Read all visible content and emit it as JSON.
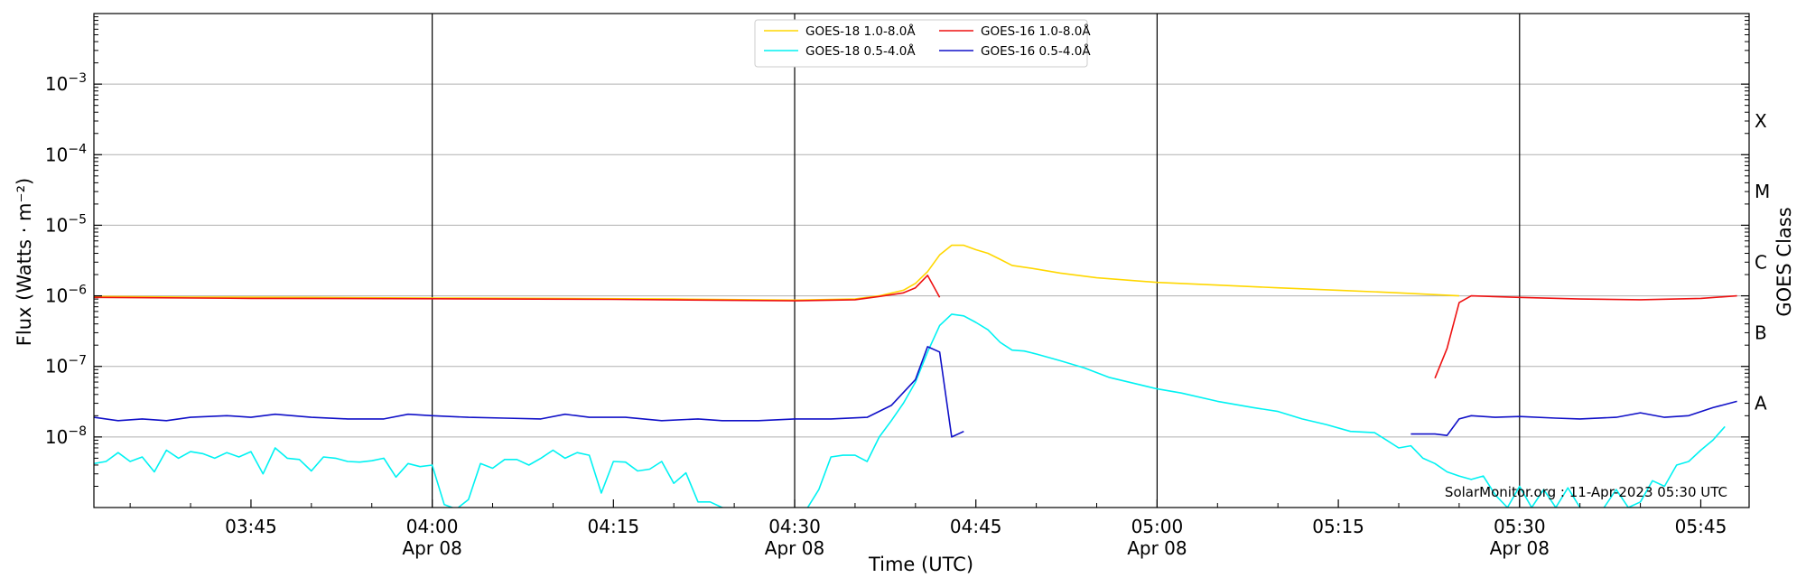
{
  "chart_data": {
    "type": "line",
    "title": "",
    "xlabel": "Time (UTC)",
    "ylabel": "Flux (Watts · m⁻²)",
    "y2label": "GOES Class",
    "yscale": "log",
    "xlim": [
      "03:32",
      "05:49"
    ],
    "ylim": [
      1e-09,
      0.01
    ],
    "grid": "horizontal",
    "legend_position": "top-center",
    "credit": "SolarMonitor.org : 11-Apr-2023 05:30 UTC",
    "x_ticks": [
      {
        "time": "03:45",
        "label": "03:45",
        "date": ""
      },
      {
        "time": "04:00",
        "label": "04:00",
        "date": "Apr 08"
      },
      {
        "time": "04:15",
        "label": "04:15",
        "date": ""
      },
      {
        "time": "04:30",
        "label": "04:30",
        "date": "Apr 08"
      },
      {
        "time": "04:45",
        "label": "04:45",
        "date": ""
      },
      {
        "time": "05:00",
        "label": "05:00",
        "date": "Apr 08"
      },
      {
        "time": "05:15",
        "label": "05:15",
        "date": ""
      },
      {
        "time": "05:30",
        "label": "05:30",
        "date": "Apr 08"
      },
      {
        "time": "05:45",
        "label": "05:45",
        "date": ""
      }
    ],
    "vertical_lines": [
      "04:00",
      "04:30",
      "05:00",
      "05:30"
    ],
    "y_ticks": [
      {
        "value": 1e-08,
        "base": "10",
        "exp": "−8"
      },
      {
        "value": 1e-07,
        "base": "10",
        "exp": "−7"
      },
      {
        "value": 1e-06,
        "base": "10",
        "exp": "−6"
      },
      {
        "value": 1e-05,
        "base": "10",
        "exp": "−5"
      },
      {
        "value": 0.0001,
        "base": "10",
        "exp": "−4"
      },
      {
        "value": 0.001,
        "base": "10",
        "exp": "−3"
      }
    ],
    "goes_classes": [
      {
        "label": "A",
        "value": 1e-08
      },
      {
        "label": "B",
        "value": 1e-07
      },
      {
        "label": "C",
        "value": 1e-06
      },
      {
        "label": "M",
        "value": 1e-05
      },
      {
        "label": "X",
        "value": 0.0001
      }
    ],
    "series": [
      {
        "name": "GOES-18 1.0-8.0Å",
        "color": "#ffd700",
        "points": [
          [
            "03:32",
            9.8e-07
          ],
          [
            "03:40",
            9.6e-07
          ],
          [
            "03:50",
            9.5e-07
          ],
          [
            "04:00",
            9.3e-07
          ],
          [
            "04:10",
            9.2e-07
          ],
          [
            "04:20",
            9e-07
          ],
          [
            "04:30",
            8.7e-07
          ],
          [
            "04:35",
            9e-07
          ],
          [
            "04:37",
            1e-06
          ],
          [
            "04:39",
            1.2e-06
          ],
          [
            "04:40",
            1.5e-06
          ],
          [
            "04:41",
            2.2e-06
          ],
          [
            "04:42",
            3.8e-06
          ],
          [
            "04:43",
            5.2e-06
          ],
          [
            "04:44",
            5.2e-06
          ],
          [
            "04:45",
            4.5e-06
          ],
          [
            "04:46",
            4e-06
          ],
          [
            "04:47",
            3.3e-06
          ],
          [
            "04:48",
            2.7e-06
          ],
          [
            "04:50",
            2.4e-06
          ],
          [
            "04:52",
            2.1e-06
          ],
          [
            "04:55",
            1.8e-06
          ],
          [
            "05:00",
            1.55e-06
          ],
          [
            "05:05",
            1.42e-06
          ],
          [
            "05:10",
            1.3e-06
          ],
          [
            "05:15",
            1.2e-06
          ],
          [
            "05:20",
            1.1e-06
          ],
          [
            "05:25",
            1e-06
          ]
        ]
      },
      {
        "name": "GOES-18 0.5-4.0Å",
        "color": "#00f2f2",
        "points": [
          [
            "03:32",
            4.2e-09
          ],
          [
            "03:33",
            4.5e-09
          ],
          [
            "03:34",
            6e-09
          ],
          [
            "03:35",
            4.5e-09
          ],
          [
            "03:36",
            5.2e-09
          ],
          [
            "03:37",
            3.2e-09
          ],
          [
            "03:38",
            6.5e-09
          ],
          [
            "03:39",
            5e-09
          ],
          [
            "03:40",
            6.2e-09
          ],
          [
            "03:41",
            5.8e-09
          ],
          [
            "03:42",
            5e-09
          ],
          [
            "03:43",
            6e-09
          ],
          [
            "03:44",
            5.2e-09
          ],
          [
            "03:45",
            6.2e-09
          ],
          [
            "03:46",
            3e-09
          ],
          [
            "03:47",
            7e-09
          ],
          [
            "03:48",
            5e-09
          ],
          [
            "03:49",
            4.8e-09
          ],
          [
            "03:50",
            3.3e-09
          ],
          [
            "03:51",
            5.2e-09
          ],
          [
            "03:52",
            5e-09
          ],
          [
            "03:53",
            4.5e-09
          ],
          [
            "03:54",
            4.4e-09
          ],
          [
            "03:55",
            4.6e-09
          ],
          [
            "03:56",
            5e-09
          ],
          [
            "03:57",
            2.7e-09
          ],
          [
            "03:58",
            4.2e-09
          ],
          [
            "03:59",
            3.8e-09
          ],
          [
            "04:00",
            4e-09
          ],
          [
            "04:01",
            1.1e-09
          ],
          [
            "04:02",
            9.5e-10
          ],
          [
            "04:03",
            1.3e-09
          ],
          [
            "04:04",
            4.2e-09
          ],
          [
            "04:05",
            3.6e-09
          ],
          [
            "04:06",
            4.8e-09
          ],
          [
            "04:07",
            4.8e-09
          ],
          [
            "04:08",
            4e-09
          ],
          [
            "04:09",
            5e-09
          ],
          [
            "04:10",
            6.5e-09
          ],
          [
            "04:11",
            5e-09
          ],
          [
            "04:12",
            6e-09
          ],
          [
            "04:13",
            5.5e-09
          ],
          [
            "04:14",
            1.6e-09
          ],
          [
            "04:15",
            4.5e-09
          ],
          [
            "04:16",
            4.4e-09
          ],
          [
            "04:17",
            3.3e-09
          ],
          [
            "04:18",
            3.5e-09
          ],
          [
            "04:19",
            4.5e-09
          ],
          [
            "04:20",
            2.2e-09
          ],
          [
            "04:21",
            3.1e-09
          ],
          [
            "04:22",
            1.2e-09
          ],
          [
            "04:23",
            1.2e-09
          ],
          [
            "04:24",
            1e-09
          ],
          [
            "04:25",
            9e-10
          ],
          [
            "04:28",
            9e-10
          ],
          [
            "04:31",
            9.5e-10
          ],
          [
            "04:32",
            1.8e-09
          ],
          [
            "04:33",
            5.2e-09
          ],
          [
            "04:34",
            5.5e-09
          ],
          [
            "04:35",
            5.5e-09
          ],
          [
            "04:36",
            4.5e-09
          ],
          [
            "04:37",
            1e-08
          ],
          [
            "04:38",
            1.7e-08
          ],
          [
            "04:39",
            3e-08
          ],
          [
            "04:40",
            6e-08
          ],
          [
            "04:41",
            1.6e-07
          ],
          [
            "04:42",
            3.8e-07
          ],
          [
            "04:43",
            5.5e-07
          ],
          [
            "04:44",
            5.2e-07
          ],
          [
            "04:45",
            4.2e-07
          ],
          [
            "04:46",
            3.3e-07
          ],
          [
            "04:47",
            2.2e-07
          ],
          [
            "04:48",
            1.7e-07
          ],
          [
            "04:49",
            1.65e-07
          ],
          [
            "04:50",
            1.5e-07
          ],
          [
            "04:52",
            1.2e-07
          ],
          [
            "04:54",
            9.5e-08
          ],
          [
            "04:56",
            7e-08
          ],
          [
            "04:58",
            5.8e-08
          ],
          [
            "05:00",
            4.8e-08
          ],
          [
            "05:02",
            4.2e-08
          ],
          [
            "05:05",
            3.2e-08
          ],
          [
            "05:08",
            2.6e-08
          ],
          [
            "05:10",
            2.3e-08
          ],
          [
            "05:12",
            1.8e-08
          ],
          [
            "05:14",
            1.5e-08
          ],
          [
            "05:16",
            1.2e-08
          ],
          [
            "05:18",
            1.15e-08
          ],
          [
            "05:19",
            9e-09
          ],
          [
            "05:20",
            7e-09
          ],
          [
            "05:21",
            7.5e-09
          ],
          [
            "05:22",
            5e-09
          ],
          [
            "05:23",
            4.2e-09
          ],
          [
            "05:24",
            3.2e-09
          ],
          [
            "05:25",
            2.8e-09
          ],
          [
            "05:26",
            2.5e-09
          ],
          [
            "05:27",
            2.8e-09
          ],
          [
            "05:28",
            1.5e-09
          ],
          [
            "05:29",
            1e-09
          ],
          [
            "05:30",
            2e-09
          ],
          [
            "05:31",
            1e-09
          ],
          [
            "05:32",
            1.8e-09
          ],
          [
            "05:33",
            1e-09
          ],
          [
            "05:34",
            1.9e-09
          ],
          [
            "05:35",
            1e-09
          ],
          [
            "05:36",
            9e-10
          ],
          [
            "05:37",
            1e-09
          ],
          [
            "05:38",
            1.8e-09
          ],
          [
            "05:39",
            1e-09
          ],
          [
            "05:40",
            1.2e-09
          ],
          [
            "05:41",
            2.4e-09
          ],
          [
            "05:42",
            2e-09
          ],
          [
            "05:43",
            4e-09
          ],
          [
            "05:44",
            4.5e-09
          ],
          [
            "05:45",
            6.5e-09
          ],
          [
            "05:46",
            9e-09
          ],
          [
            "05:47",
            1.4e-08
          ]
        ]
      },
      {
        "name": "GOES-16 1.0-8.0Å",
        "color": "#ee1111",
        "segments": [
          [
            [
              "03:32",
              9.5e-07
            ],
            [
              "03:45",
              9.2e-07
            ],
            [
              "04:00",
              9.1e-07
            ],
            [
              "04:15",
              8.9e-07
            ],
            [
              "04:30",
              8.5e-07
            ],
            [
              "04:35",
              8.8e-07
            ],
            [
              "04:37",
              9.8e-07
            ],
            [
              "04:39",
              1.1e-06
            ],
            [
              "04:40",
              1.3e-06
            ],
            [
              "04:41",
              1.95e-06
            ],
            [
              "04:42",
              9.5e-07
            ]
          ],
          [
            [
              "05:23",
              6.8e-08
            ],
            [
              "05:24",
              1.8e-07
            ],
            [
              "05:25",
              8e-07
            ],
            [
              "05:26",
              1e-06
            ],
            [
              "05:30",
              9.5e-07
            ],
            [
              "05:35",
              9e-07
            ],
            [
              "05:40",
              8.8e-07
            ],
            [
              "05:45",
              9.2e-07
            ],
            [
              "05:48",
              1e-06
            ]
          ]
        ]
      },
      {
        "name": "GOES-16 0.5-4.0Å",
        "color": "#1010c8",
        "segments": [
          [
            [
              "03:32",
              1.9e-08
            ],
            [
              "03:34",
              1.7e-08
            ],
            [
              "03:36",
              1.8e-08
            ],
            [
              "03:38",
              1.7e-08
            ],
            [
              "03:40",
              1.9e-08
            ],
            [
              "03:43",
              2e-08
            ],
            [
              "03:45",
              1.9e-08
            ],
            [
              "03:47",
              2.1e-08
            ],
            [
              "03:50",
              1.9e-08
            ],
            [
              "03:53",
              1.8e-08
            ],
            [
              "03:56",
              1.8e-08
            ],
            [
              "03:58",
              2.1e-08
            ],
            [
              "04:00",
              2e-08
            ],
            [
              "04:03",
              1.9e-08
            ],
            [
              "04:06",
              1.85e-08
            ],
            [
              "04:09",
              1.8e-08
            ],
            [
              "04:11",
              2.1e-08
            ],
            [
              "04:13",
              1.9e-08
            ],
            [
              "04:16",
              1.9e-08
            ],
            [
              "04:19",
              1.7e-08
            ],
            [
              "04:22",
              1.8e-08
            ],
            [
              "04:24",
              1.7e-08
            ],
            [
              "04:27",
              1.7e-08
            ],
            [
              "04:30",
              1.8e-08
            ],
            [
              "04:33",
              1.8e-08
            ],
            [
              "04:36",
              1.9e-08
            ],
            [
              "04:38",
              2.8e-08
            ],
            [
              "04:40",
              6.5e-08
            ],
            [
              "04:41",
              1.9e-07
            ],
            [
              "04:42",
              1.6e-07
            ],
            [
              "04:43",
              1e-08
            ],
            [
              "04:44",
              1.2e-08
            ]
          ],
          [
            [
              "05:21",
              1.1e-08
            ],
            [
              "05:23",
              1.1e-08
            ],
            [
              "05:24",
              1.05e-08
            ],
            [
              "05:25",
              1.8e-08
            ],
            [
              "05:26",
              2e-08
            ],
            [
              "05:28",
              1.9e-08
            ],
            [
              "05:30",
              1.95e-08
            ],
            [
              "05:33",
              1.85e-08
            ],
            [
              "05:35",
              1.8e-08
            ],
            [
              "05:38",
              1.9e-08
            ],
            [
              "05:40",
              2.2e-08
            ],
            [
              "05:42",
              1.9e-08
            ],
            [
              "05:44",
              2e-08
            ],
            [
              "05:46",
              2.6e-08
            ],
            [
              "05:48",
              3.2e-08
            ]
          ]
        ]
      }
    ]
  }
}
